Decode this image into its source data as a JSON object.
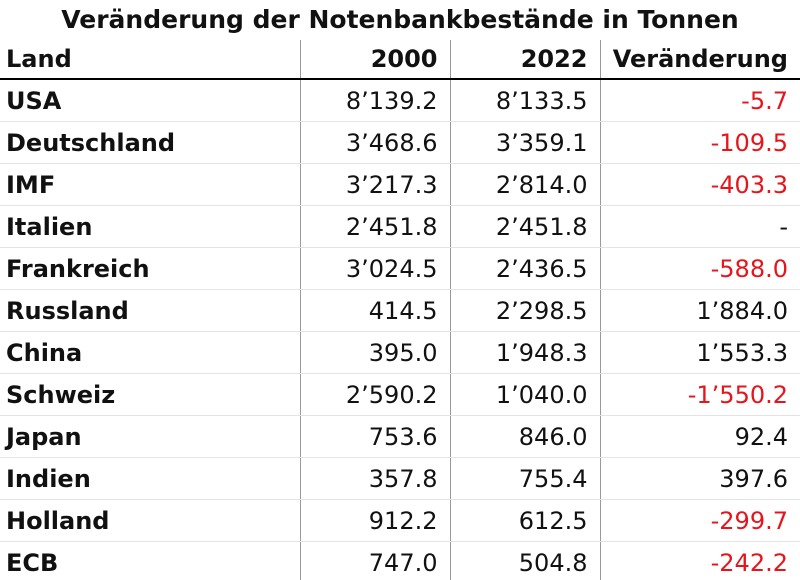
{
  "title": "Veränderung der Notenbankbestände in Tonnen",
  "table": {
    "header": [
      "Land",
      "2000",
      "2022",
      "Veränderung"
    ],
    "rows": [
      [
        "USA",
        "8’139.2",
        "8’133.5",
        "-5.7"
      ],
      [
        "Deutschland",
        "3’468.6",
        "3’359.1",
        "-109.5"
      ],
      [
        "IMF",
        "3’217.3",
        "2’814.0",
        "-403.3"
      ],
      [
        "Italien",
        "2’451.8",
        "2’451.8",
        "-"
      ],
      [
        "Frankreich",
        "3’024.5",
        "2’436.5",
        "-588.0"
      ],
      [
        "Russland",
        "414.5",
        "2’298.5",
        "1’884.0"
      ],
      [
        "China",
        "395.0",
        "1’948.3",
        "1’553.3"
      ],
      [
        "Schweiz",
        "2’590.2",
        "1’040.0",
        "-1’550.2"
      ],
      [
        "Japan",
        "753.6",
        "846.0",
        "92.4"
      ],
      [
        "Indien",
        "357.8",
        "755.4",
        "397.6"
      ],
      [
        "Holland",
        "912.2",
        "612.5",
        "-299.7"
      ],
      [
        "ECB",
        "747.0",
        "504.8",
        "-242.2"
      ]
    ]
  }
}
